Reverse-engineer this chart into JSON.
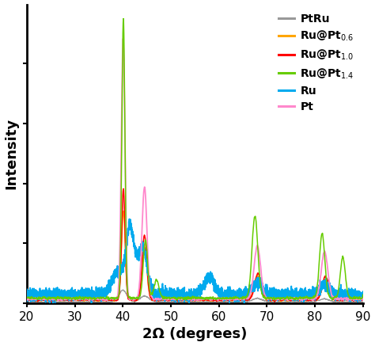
{
  "title": "",
  "xlabel": "2Ω (degrees)",
  "ylabel": "Intensity",
  "xlim": [
    20,
    90
  ],
  "xticks": [
    20,
    30,
    40,
    50,
    60,
    70,
    80,
    90
  ],
  "colors": {
    "PtRu": "#999999",
    "Ru_Pt06": "#FFA500",
    "Ru_Pt10": "#FF0000",
    "Ru_Pt14": "#66CC00",
    "Ru": "#00AAEE",
    "Pt": "#FF88CC"
  },
  "linewidths": {
    "PtRu": 1.0,
    "Ru_Pt06": 1.1,
    "Ru_Pt10": 1.1,
    "Ru_Pt14": 1.1,
    "Ru": 1.3,
    "Pt": 1.3
  },
  "background_color": "#ffffff",
  "xlabel_fontsize": 13,
  "ylabel_fontsize": 13,
  "legend_fontsize": 10,
  "tick_fontsize": 11
}
